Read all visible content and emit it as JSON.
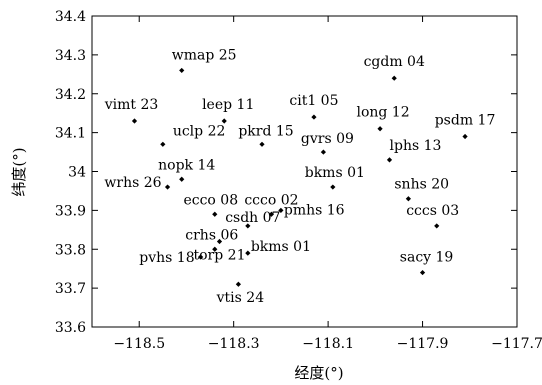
{
  "chart_data": {
    "type": "scatter",
    "title": "",
    "xlabel": "经度(°)",
    "ylabel": "纬度(°)",
    "xlim": [
      -118.6,
      -117.7
    ],
    "ylim": [
      33.6,
      34.4
    ],
    "xticks": [
      -118.5,
      -118.3,
      -118.1,
      -117.9,
      -117.7
    ],
    "xtick_labels": [
      "−118.5",
      "−118.3",
      "−118.1",
      "−117.9",
      "−117.7"
    ],
    "yticks": [
      33.6,
      33.7,
      33.8,
      33.9,
      34.0,
      34.1,
      34.2,
      34.3,
      34.4
    ],
    "ytick_labels": [
      "33.6",
      "33.7",
      "33.8",
      "33.9",
      "34",
      "34.1",
      "34.2",
      "34.3",
      "34.4"
    ],
    "grid": false,
    "points": [
      {
        "label": "wmap 25",
        "x": -118.41,
        "y": 34.26
      },
      {
        "label": "cgdm 04",
        "x": -117.96,
        "y": 34.24
      },
      {
        "label": "vimt 23",
        "x": -118.51,
        "y": 34.13
      },
      {
        "label": "leep 11",
        "x": -118.32,
        "y": 34.13
      },
      {
        "label": "cit1 05",
        "x": -118.13,
        "y": 34.14
      },
      {
        "label": "long 12",
        "x": -117.99,
        "y": 34.11
      },
      {
        "label": "psdm 17",
        "x": -117.81,
        "y": 34.09
      },
      {
        "label": "uclp 22",
        "x": -118.45,
        "y": 34.07
      },
      {
        "label": "pkrd 15",
        "x": -118.24,
        "y": 34.07
      },
      {
        "label": "gvrs 09",
        "x": -118.11,
        "y": 34.05
      },
      {
        "label": "lphs 13",
        "x": -117.97,
        "y": 34.03
      },
      {
        "label": "nopk 14",
        "x": -118.41,
        "y": 33.98
      },
      {
        "label": "wrhs 26",
        "x": -118.44,
        "y": 33.96
      },
      {
        "label": "bkms 01",
        "x": -118.09,
        "y": 33.96
      },
      {
        "label": "snhs 20",
        "x": -117.93,
        "y": 33.93
      },
      {
        "label": "ecco 08",
        "x": -118.34,
        "y": 33.89
      },
      {
        "label": "ccco 02",
        "x": -118.22,
        "y": 33.89
      },
      {
        "label": "pmhs 16",
        "x": -118.2,
        "y": 33.9
      },
      {
        "label": "cccs 03",
        "x": -117.87,
        "y": 33.86
      },
      {
        "label": "csdh 07",
        "x": -118.27,
        "y": 33.86
      },
      {
        "label": "crhs 06",
        "x": -118.34,
        "y": 33.8
      },
      {
        "label": "bkms 01",
        "x": -118.27,
        "y": 33.79
      },
      {
        "label": "pvhs 18",
        "x": -118.37,
        "y": 33.78
      },
      {
        "label": "torp 21",
        "x": -118.33,
        "y": 33.82
      },
      {
        "label": "sacy 19",
        "x": -117.9,
        "y": 33.74
      },
      {
        "label": "vtis 24",
        "x": -118.29,
        "y": 33.71
      }
    ]
  }
}
